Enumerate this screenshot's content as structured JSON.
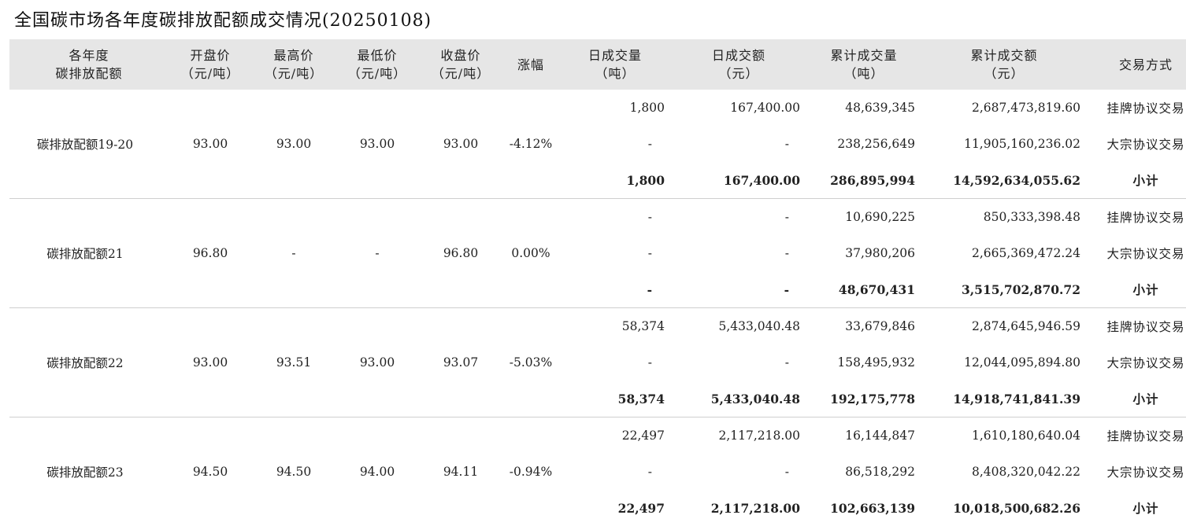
{
  "title": "全国碳市场各年度碳排放配额成交情况(20250108)",
  "headers": [
    [
      "各年度",
      "碳排放配额"
    ],
    [
      "开盘价",
      "（元/吨）"
    ],
    [
      "最高价",
      "（元/吨）"
    ],
    [
      "最低价",
      "（元/吨）"
    ],
    [
      "收盘价",
      "（元/吨）"
    ],
    [
      "涨幅",
      ""
    ],
    [
      "日成交量",
      "（吨）"
    ],
    [
      "日成交额",
      "（元）"
    ],
    [
      "累计成交量",
      "（吨）"
    ],
    [
      "累计成交额",
      "（元）"
    ],
    [
      "交易方式",
      ""
    ]
  ],
  "groups": [
    {
      "name": "碳排放配额19-20",
      "open": "93.00",
      "high": "93.00",
      "low": "93.00",
      "close": "93.00",
      "change": "-4.12%",
      "rows": [
        {
          "vol": "1,800",
          "amt": "167,400.00",
          "cum_vol": "48,639,345",
          "cum_amt": "2,687,473,819.60",
          "method": "挂牌协议交易"
        },
        {
          "vol": "-",
          "amt": "-",
          "cum_vol": "238,256,649",
          "cum_amt": "11,905,160,236.02",
          "method": "大宗协议交易"
        },
        {
          "vol": "1,800",
          "amt": "167,400.00",
          "cum_vol": "286,895,994",
          "cum_amt": "14,592,634,055.62",
          "method": "小计"
        }
      ]
    },
    {
      "name": "碳排放配额21",
      "open": "96.80",
      "high": "-",
      "low": "-",
      "close": "96.80",
      "change": "0.00%",
      "rows": [
        {
          "vol": "-",
          "amt": "-",
          "cum_vol": "10,690,225",
          "cum_amt": "850,333,398.48",
          "method": "挂牌协议交易"
        },
        {
          "vol": "-",
          "amt": "-",
          "cum_vol": "37,980,206",
          "cum_amt": "2,665,369,472.24",
          "method": "大宗协议交易"
        },
        {
          "vol": "-",
          "amt": "-",
          "cum_vol": "48,670,431",
          "cum_amt": "3,515,702,870.72",
          "method": "小计"
        }
      ]
    },
    {
      "name": "碳排放配额22",
      "open": "93.00",
      "high": "93.51",
      "low": "93.00",
      "close": "93.07",
      "change": "-5.03%",
      "rows": [
        {
          "vol": "58,374",
          "amt": "5,433,040.48",
          "cum_vol": "33,679,846",
          "cum_amt": "2,874,645,946.59",
          "method": "挂牌协议交易"
        },
        {
          "vol": "-",
          "amt": "-",
          "cum_vol": "158,495,932",
          "cum_amt": "12,044,095,894.80",
          "method": "大宗协议交易"
        },
        {
          "vol": "58,374",
          "amt": "5,433,040.48",
          "cum_vol": "192,175,778",
          "cum_amt": "14,918,741,841.39",
          "method": "小计"
        }
      ]
    },
    {
      "name": "碳排放配额23",
      "open": "94.50",
      "high": "94.50",
      "low": "94.00",
      "close": "94.11",
      "change": "-0.94%",
      "rows": [
        {
          "vol": "22,497",
          "amt": "2,117,218.00",
          "cum_vol": "16,144,847",
          "cum_amt": "1,610,180,640.04",
          "method": "挂牌协议交易"
        },
        {
          "vol": "-",
          "amt": "-",
          "cum_vol": "86,518,292",
          "cum_amt": "8,408,320,042.22",
          "method": "大宗协议交易"
        },
        {
          "vol": "22,497",
          "amt": "2,117,218.00",
          "cum_vol": "102,663,139",
          "cum_amt": "10,018,500,682.26",
          "method": "小计"
        }
      ]
    }
  ]
}
